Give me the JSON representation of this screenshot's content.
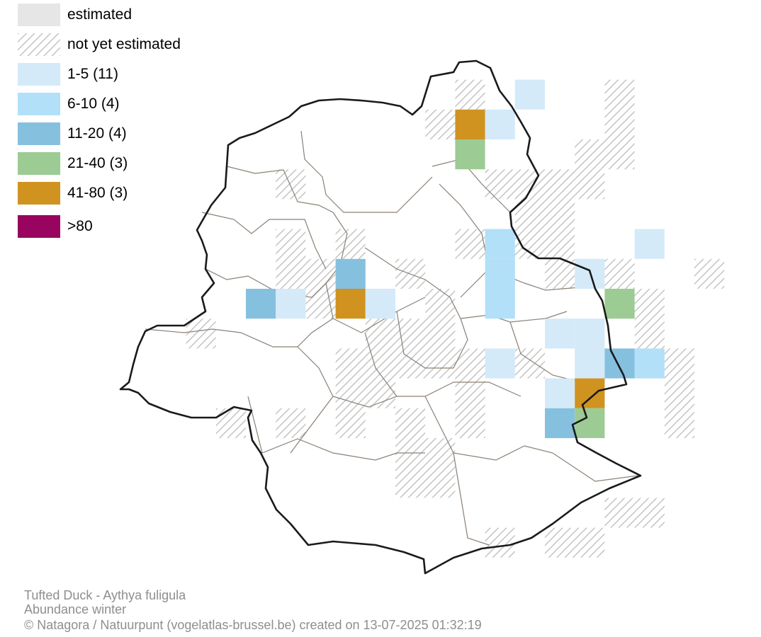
{
  "legend": {
    "items": [
      {
        "label": "estimated",
        "color": "#e6e6e6",
        "pattern": "solid"
      },
      {
        "label": "not yet estimated",
        "color": "#c4c4c4",
        "pattern": "hatch"
      },
      {
        "label": "1-5 (11)",
        "color": "#d4eaf9",
        "pattern": "solid"
      },
      {
        "label": "6-10 (4)",
        "color": "#b2e0f8",
        "pattern": "solid"
      },
      {
        "label": "11-20 (4)",
        "color": "#86c0df",
        "pattern": "solid"
      },
      {
        "label": "21-40 (3)",
        "color": "#9ccb94",
        "pattern": "solid"
      },
      {
        "label": "41-80 (3)",
        "color": "#d09320",
        "pattern": "solid"
      },
      {
        "label": ">80",
        "color": "#980460",
        "pattern": "solid"
      }
    ]
  },
  "grid": {
    "hatched": [
      [
        12,
        3
      ],
      [
        17,
        3
      ],
      [
        11,
        4
      ],
      [
        17,
        4
      ],
      [
        16,
        5
      ],
      [
        17,
        5
      ],
      [
        6,
        6
      ],
      [
        11,
        6
      ],
      [
        13,
        6
      ],
      [
        14,
        6
      ],
      [
        15,
        6
      ],
      [
        16,
        6
      ],
      [
        14,
        7
      ],
      [
        15,
        7
      ],
      [
        6,
        8
      ],
      [
        8,
        8
      ],
      [
        12,
        8
      ],
      [
        13,
        8
      ],
      [
        14,
        8
      ],
      [
        15,
        8
      ],
      [
        6,
        9
      ],
      [
        7,
        9
      ],
      [
        10,
        9
      ],
      [
        15,
        9
      ],
      [
        17,
        9
      ],
      [
        20,
        9
      ],
      [
        7,
        10
      ],
      [
        9,
        10
      ],
      [
        11,
        10
      ],
      [
        17,
        10
      ],
      [
        18,
        10
      ],
      [
        3,
        11
      ],
      [
        9,
        11
      ],
      [
        10,
        11
      ],
      [
        11,
        11
      ],
      [
        15,
        11
      ],
      [
        16,
        11
      ],
      [
        18,
        11
      ],
      [
        8,
        12
      ],
      [
        9,
        12
      ],
      [
        10,
        12
      ],
      [
        11,
        12
      ],
      [
        12,
        12
      ],
      [
        14,
        12
      ],
      [
        17,
        12
      ],
      [
        18,
        12
      ],
      [
        19,
        12
      ],
      [
        8,
        13
      ],
      [
        9,
        13
      ],
      [
        10,
        13
      ],
      [
        11,
        13
      ],
      [
        12,
        13
      ],
      [
        19,
        13
      ],
      [
        4,
        14
      ],
      [
        6,
        14
      ],
      [
        7,
        14
      ],
      [
        8,
        14
      ],
      [
        10,
        14
      ],
      [
        12,
        14
      ],
      [
        19,
        14
      ],
      [
        10,
        15
      ],
      [
        11,
        15
      ],
      [
        9,
        16
      ],
      [
        10,
        16
      ],
      [
        11,
        16
      ],
      [
        12,
        16
      ],
      [
        13,
        16
      ],
      [
        17,
        17
      ],
      [
        18,
        17
      ],
      [
        13,
        18
      ],
      [
        15,
        18
      ],
      [
        16,
        18
      ]
    ],
    "estimated": [
      [
        10,
        5
      ],
      [
        12,
        5
      ],
      [
        11,
        6
      ],
      [
        12,
        7
      ],
      [
        13,
        7
      ],
      [
        9,
        8
      ],
      [
        11,
        8
      ],
      [
        8,
        9
      ],
      [
        9,
        9
      ],
      [
        11,
        9
      ],
      [
        14,
        9
      ],
      [
        6,
        10
      ],
      [
        8,
        10
      ],
      [
        10,
        10
      ],
      [
        12,
        10
      ],
      [
        14,
        10
      ],
      [
        15,
        10
      ],
      [
        4,
        11
      ],
      [
        12,
        11
      ],
      [
        16,
        11
      ],
      [
        7,
        12
      ],
      [
        10,
        13
      ],
      [
        11,
        13
      ],
      [
        13,
        13
      ],
      [
        14,
        13
      ],
      [
        7,
        14
      ],
      [
        11,
        14
      ],
      [
        13,
        14
      ],
      [
        14,
        14
      ],
      [
        15,
        14
      ],
      [
        16,
        14
      ],
      [
        17,
        14
      ],
      [
        7,
        15
      ],
      [
        8,
        15
      ],
      [
        9,
        15
      ],
      [
        12,
        15
      ],
      [
        13,
        15
      ],
      [
        14,
        15
      ],
      [
        17,
        15
      ],
      [
        18,
        15
      ],
      [
        9,
        16
      ],
      [
        12,
        16
      ],
      [
        13,
        16
      ],
      [
        15,
        16
      ],
      [
        17,
        16
      ],
      [
        18,
        16
      ],
      [
        10,
        17
      ],
      [
        11,
        17
      ],
      [
        12,
        17
      ],
      [
        13,
        17
      ],
      [
        14,
        17
      ],
      [
        15,
        17
      ],
      [
        10,
        18
      ],
      [
        11,
        18
      ],
      [
        12,
        18
      ],
      [
        14,
        18
      ]
    ],
    "abundance": [
      {
        "col": 14,
        "row": 3,
        "cls": 2
      },
      {
        "col": 12,
        "row": 4,
        "cls": 6
      },
      {
        "col": 13,
        "row": 4,
        "cls": 2
      },
      {
        "col": 12,
        "row": 5,
        "cls": 5
      },
      {
        "col": 13,
        "row": 8,
        "cls": 3
      },
      {
        "col": 18,
        "row": 8,
        "cls": 2
      },
      {
        "col": 8,
        "row": 9,
        "cls": 4
      },
      {
        "col": 13,
        "row": 9,
        "cls": 3
      },
      {
        "col": 16,
        "row": 9,
        "cls": 2
      },
      {
        "col": 5,
        "row": 10,
        "cls": 4
      },
      {
        "col": 6,
        "row": 10,
        "cls": 2
      },
      {
        "col": 8,
        "row": 10,
        "cls": 6
      },
      {
        "col": 9,
        "row": 10,
        "cls": 2
      },
      {
        "col": 13,
        "row": 10,
        "cls": 3
      },
      {
        "col": 17,
        "row": 10,
        "cls": 5
      },
      {
        "col": 15,
        "row": 11,
        "cls": 2
      },
      {
        "col": 16,
        "row": 11,
        "cls": 2
      },
      {
        "col": 13,
        "row": 12,
        "cls": 2
      },
      {
        "col": 16,
        "row": 12,
        "cls": 2
      },
      {
        "col": 17,
        "row": 12,
        "cls": 4
      },
      {
        "col": 18,
        "row": 12,
        "cls": 3
      },
      {
        "col": 15,
        "row": 13,
        "cls": 2
      },
      {
        "col": 16,
        "row": 13,
        "cls": 6
      },
      {
        "col": 15,
        "row": 14,
        "cls": 4
      },
      {
        "col": 16,
        "row": 14,
        "cls": 5
      }
    ]
  },
  "credits": {
    "species": "Tufted Duck - Aythya fuligula",
    "map_type": "Abundance winter",
    "source": "© Natagora / Natuurpunt (vogelatlas-brussel.be) created on 13-07-2025 01:32:19"
  }
}
